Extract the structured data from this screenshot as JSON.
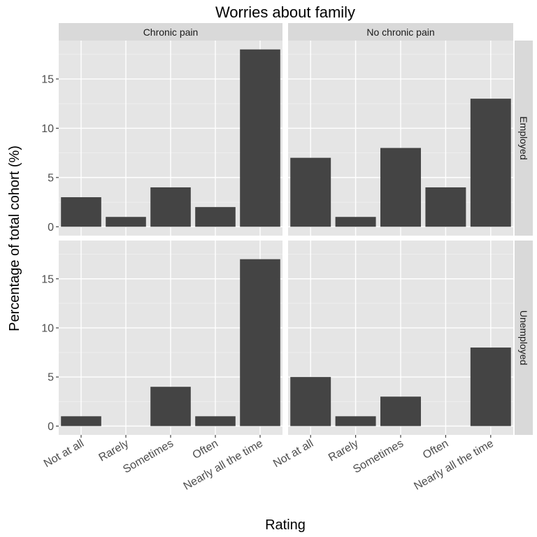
{
  "chart_data": {
    "type": "bar",
    "title": "Worries about family",
    "xlabel": "Rating",
    "ylabel": "Percentage of total cohort (%)",
    "categories": [
      "Not at all",
      "Rarely",
      "Sometimes",
      "Often",
      "Nearly all the time"
    ],
    "y_ticks": [
      0,
      5,
      10,
      15
    ],
    "ylim": [
      -0.9,
      18.9
    ],
    "grid": true,
    "bar_color": "#444444",
    "panel_background": "#E5E5E5",
    "strip_background": "#D9D9D9",
    "facet_columns": [
      "Chronic pain",
      "No chronic pain"
    ],
    "facet_rows": [
      "Employed",
      "Unemployed"
    ],
    "panels": [
      {
        "column": "Chronic pain",
        "row": "Employed",
        "values": [
          3,
          1,
          4,
          2,
          18
        ]
      },
      {
        "column": "No chronic pain",
        "row": "Employed",
        "values": [
          7,
          1,
          8,
          4,
          13
        ]
      },
      {
        "column": "Chronic pain",
        "row": "Unemployed",
        "values": [
          1,
          0,
          4,
          1,
          17
        ]
      },
      {
        "column": "No chronic pain",
        "row": "Unemployed",
        "values": [
          5,
          1,
          3,
          0,
          8
        ]
      }
    ]
  }
}
